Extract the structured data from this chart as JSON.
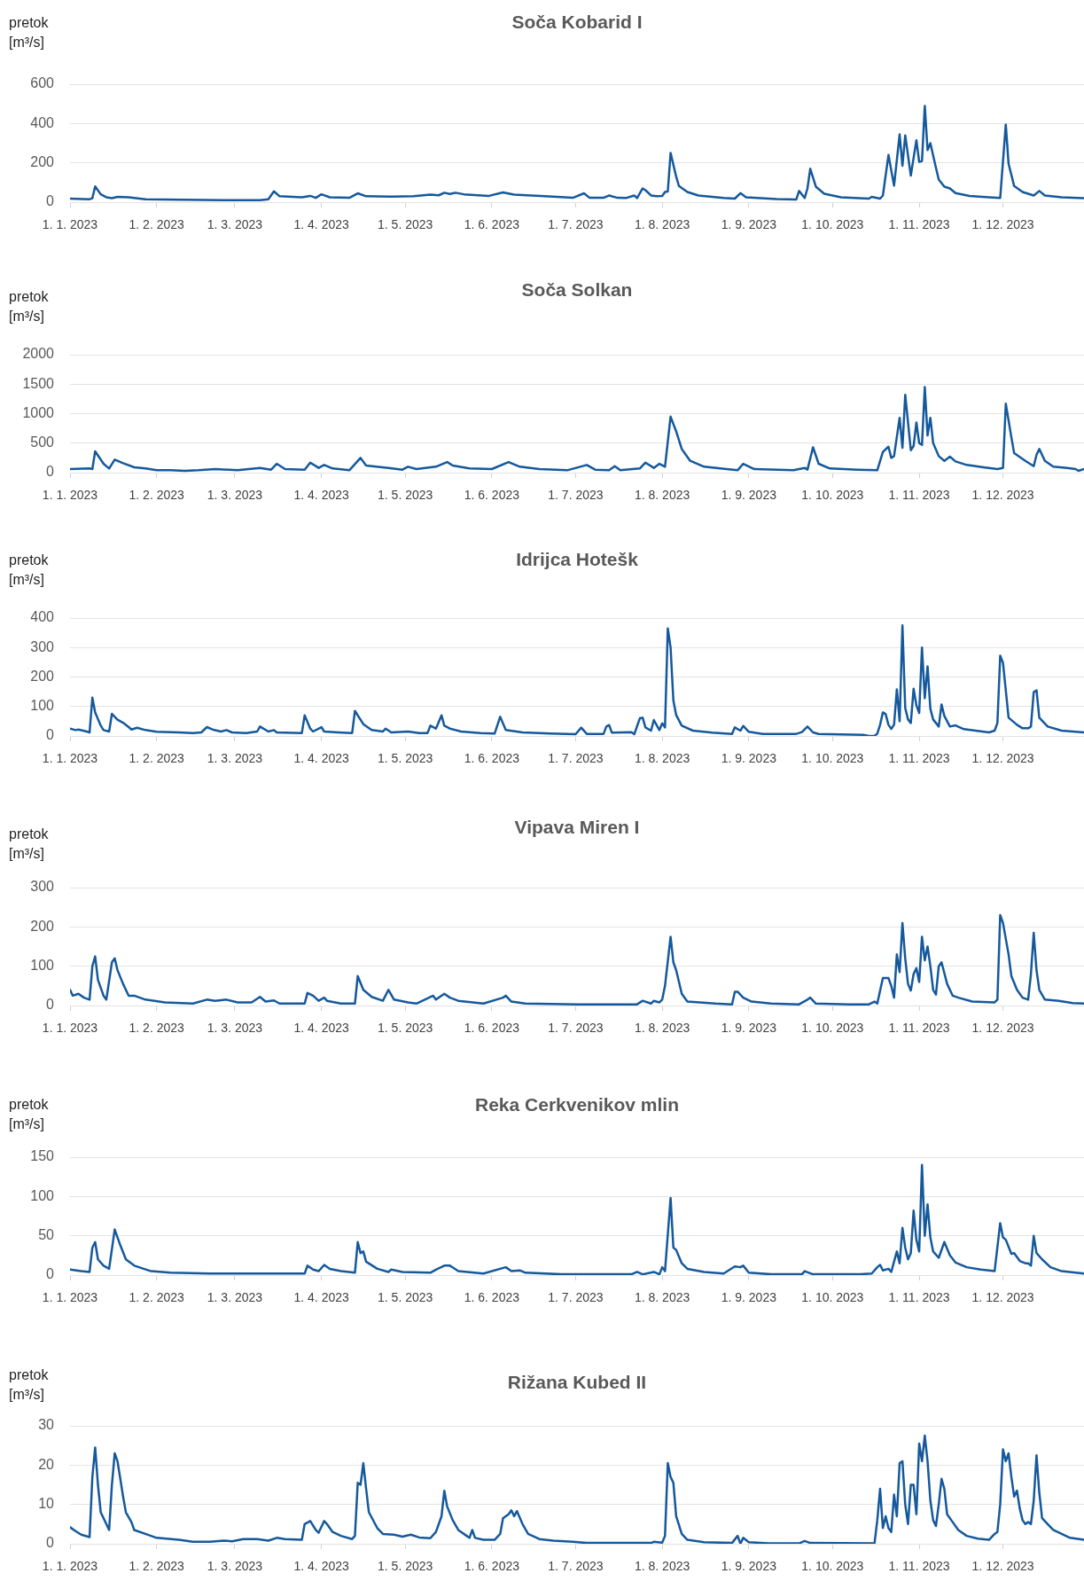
{
  "chart_data": [
    {
      "type": "line",
      "title": "Soča Kobarid I",
      "ylabel": "pretok [m³/s]",
      "color": "#15599c",
      "grid": "y",
      "xlim": [
        "2023-01-01",
        "2023-12-30"
      ],
      "xticks": [
        {
          "value": "2023-01-01",
          "label": "1. 1. 2023"
        },
        {
          "value": "2023-02-01",
          "label": "1. 2. 2023"
        },
        {
          "value": "2023-03-01",
          "label": "1. 3. 2023"
        },
        {
          "value": "2023-04-01",
          "label": "1. 4. 2023"
        },
        {
          "value": "2023-05-01",
          "label": "1. 5. 2023"
        },
        {
          "value": "2023-06-01",
          "label": "1. 6. 2023"
        },
        {
          "value": "2023-07-01",
          "label": "1. 7. 2023"
        },
        {
          "value": "2023-08-01",
          "label": "1. 8. 2023"
        },
        {
          "value": "2023-09-01",
          "label": "1. 9. 2023"
        },
        {
          "value": "2023-10-01",
          "label": "1. 10. 2023"
        },
        {
          "value": "2023-11-01",
          "label": "1. 11. 2023"
        },
        {
          "value": "2023-12-01",
          "label": "1. 12. 2023"
        }
      ],
      "ylim": [
        0,
        600
      ],
      "yticks": [
        0,
        200,
        400,
        600
      ],
      "x": [
        "2023-01-01",
        "2023-01-08",
        "2023-01-09",
        "2023-01-10",
        "2023-01-12",
        "2023-01-14",
        "2023-01-16",
        "2023-01-18",
        "2023-01-22",
        "2023-01-28",
        "2023-02-10",
        "2023-02-25",
        "2023-03-10",
        "2023-03-13",
        "2023-03-15",
        "2023-03-17",
        "2023-03-25",
        "2023-03-28",
        "2023-03-30",
        "2023-04-01",
        "2023-04-04",
        "2023-04-11",
        "2023-04-14",
        "2023-04-17",
        "2023-04-26",
        "2023-05-04",
        "2023-05-10",
        "2023-05-13",
        "2023-05-15",
        "2023-05-17",
        "2023-05-19",
        "2023-05-22",
        "2023-05-31",
        "2023-06-05",
        "2023-06-09",
        "2023-06-20",
        "2023-06-30",
        "2023-07-04",
        "2023-07-06",
        "2023-07-11",
        "2023-07-13",
        "2023-07-16",
        "2023-07-19",
        "2023-07-22",
        "2023-07-23",
        "2023-07-25",
        "2023-07-26",
        "2023-07-28",
        "2023-07-30",
        "2023-08-01",
        "2023-08-02",
        "2023-08-03",
        "2023-08-04",
        "2023-08-06",
        "2023-08-07",
        "2023-08-10",
        "2023-08-14",
        "2023-08-23",
        "2023-08-27",
        "2023-08-29",
        "2023-08-31",
        "2023-09-11",
        "2023-09-18",
        "2023-09-19",
        "2023-09-21",
        "2023-09-22",
        "2023-09-23",
        "2023-09-25",
        "2023-09-28",
        "2023-10-04",
        "2023-10-14",
        "2023-10-15",
        "2023-10-18",
        "2023-10-19",
        "2023-10-21",
        "2023-10-23",
        "2023-10-25",
        "2023-10-26",
        "2023-10-27",
        "2023-10-29",
        "2023-10-31",
        "2023-11-01",
        "2023-11-02",
        "2023-11-03",
        "2023-11-04",
        "2023-11-05",
        "2023-11-07",
        "2023-11-08",
        "2023-11-10",
        "2023-11-12",
        "2023-11-14",
        "2023-11-19",
        "2023-11-26",
        "2023-11-30",
        "2023-12-02",
        "2023-12-03",
        "2023-12-05",
        "2023-12-08",
        "2023-12-12",
        "2023-12-14",
        "2023-12-16",
        "2023-12-22",
        "2023-12-30"
      ],
      "values": [
        18,
        15,
        20,
        80,
        40,
        25,
        20,
        27,
        25,
        15,
        12,
        10,
        10,
        15,
        55,
        30,
        25,
        32,
        22,
        40,
        25,
        22,
        45,
        30,
        28,
        30,
        38,
        35,
        48,
        42,
        48,
        40,
        32,
        50,
        38,
        30,
        22,
        45,
        22,
        22,
        34,
        22,
        21,
        34,
        21,
        70,
        61,
        34,
        30,
        32,
        52,
        54,
        250,
        130,
        82,
        52,
        34,
        21,
        18,
        46,
        25,
        16,
        14,
        57,
        21,
        70,
        170,
        79,
        43,
        25,
        18,
        27,
        18,
        34,
        240,
        84,
        345,
        185,
        340,
        135,
        315,
        205,
        210,
        490,
        265,
        300,
        175,
        115,
        79,
        70,
        46,
        32,
        25,
        21,
        395,
        195,
        82,
        52,
        34,
        57,
        34,
        25,
        20
      ]
    },
    {
      "type": "line",
      "title": "Soča Solkan",
      "ylabel": "pretok [m³/s]",
      "color": "#15599c",
      "grid": "y",
      "xlim": [
        "2023-01-01",
        "2023-12-30"
      ],
      "xticks": [
        {
          "value": "2023-01-01",
          "label": "1. 1. 2023"
        },
        {
          "value": "2023-02-01",
          "label": "1. 2. 2023"
        },
        {
          "value": "2023-03-01",
          "label": "1. 3. 2023"
        },
        {
          "value": "2023-04-01",
          "label": "1. 4. 2023"
        },
        {
          "value": "2023-05-01",
          "label": "1. 5. 2023"
        },
        {
          "value": "2023-06-01",
          "label": "1. 6. 2023"
        },
        {
          "value": "2023-07-01",
          "label": "1. 7. 2023"
        },
        {
          "value": "2023-08-01",
          "label": "1. 8. 2023"
        },
        {
          "value": "2023-09-01",
          "label": "1. 9. 2023"
        },
        {
          "value": "2023-10-01",
          "label": "1. 10. 2023"
        },
        {
          "value": "2023-11-01",
          "label": "1. 11. 2023"
        },
        {
          "value": "2023-12-01",
          "label": "1. 12. 2023"
        }
      ],
      "ylim": [
        0,
        2000
      ],
      "yticks": [
        0,
        500,
        1000,
        1500,
        2000
      ],
      "x": [
        "2023-01-01",
        "2023-01-08",
        "2023-01-09",
        "2023-01-10",
        "2023-01-13",
        "2023-01-15",
        "2023-01-17",
        "2023-01-20",
        "2023-01-24",
        "2023-01-28",
        "2023-02-01",
        "2023-02-06",
        "2023-02-11",
        "2023-02-16",
        "2023-02-22",
        "2023-03-02",
        "2023-03-10",
        "2023-03-14",
        "2023-03-16",
        "2023-03-19",
        "2023-03-26",
        "2023-03-28",
        "2023-03-31",
        "2023-04-02",
        "2023-04-05",
        "2023-04-11",
        "2023-04-15",
        "2023-04-17",
        "2023-04-25",
        "2023-04-30",
        "2023-05-02",
        "2023-05-05",
        "2023-05-12",
        "2023-05-16",
        "2023-05-18",
        "2023-05-24",
        "2023-06-01",
        "2023-06-07",
        "2023-06-11",
        "2023-06-18",
        "2023-06-28",
        "2023-07-05",
        "2023-07-08",
        "2023-07-13",
        "2023-07-15",
        "2023-07-17",
        "2023-07-24",
        "2023-07-26",
        "2023-07-29",
        "2023-07-31",
        "2023-08-02",
        "2023-08-04",
        "2023-08-06",
        "2023-08-08",
        "2023-08-11",
        "2023-08-16",
        "2023-08-24",
        "2023-08-28",
        "2023-08-30",
        "2023-09-03",
        "2023-09-17",
        "2023-09-21",
        "2023-09-22",
        "2023-09-24",
        "2023-09-26",
        "2023-09-30",
        "2023-10-10",
        "2023-10-17",
        "2023-10-19",
        "2023-10-21",
        "2023-10-22",
        "2023-10-23",
        "2023-10-25",
        "2023-10-26",
        "2023-10-27",
        "2023-10-29",
        "2023-10-30",
        "2023-10-31",
        "2023-11-01",
        "2023-11-02",
        "2023-11-03",
        "2023-11-04",
        "2023-11-05",
        "2023-11-06",
        "2023-11-08",
        "2023-11-10",
        "2023-11-12",
        "2023-11-14",
        "2023-11-18",
        "2023-11-24",
        "2023-11-29",
        "2023-12-01",
        "2023-12-02",
        "2023-12-04",
        "2023-12-05",
        "2023-12-09",
        "2023-12-12",
        "2023-12-13",
        "2023-12-14",
        "2023-12-16",
        "2023-12-19",
        "2023-12-24",
        "2023-12-27",
        "2023-12-28",
        "2023-12-30"
      ],
      "values": [
        60,
        70,
        60,
        360,
        150,
        70,
        220,
        160,
        90,
        70,
        40,
        40,
        30,
        40,
        60,
        40,
        80,
        50,
        150,
        60,
        50,
        170,
        80,
        130,
        70,
        40,
        250,
        120,
        80,
        50,
        100,
        60,
        100,
        180,
        120,
        70,
        60,
        180,
        100,
        60,
        40,
        130,
        50,
        40,
        110,
        40,
        70,
        170,
        80,
        150,
        100,
        950,
        700,
        400,
        200,
        100,
        60,
        40,
        150,
        60,
        40,
        80,
        50,
        430,
        150,
        70,
        50,
        40,
        350,
        440,
        250,
        280,
        930,
        420,
        1320,
        380,
        450,
        850,
        500,
        470,
        1450,
        630,
        930,
        500,
        280,
        200,
        270,
        190,
        130,
        90,
        60,
        80,
        1170,
        600,
        330,
        200,
        110,
        300,
        400,
        200,
        100,
        80,
        60,
        30,
        60
      ]
    },
    {
      "type": "line",
      "title": "Idrijca Hotešk",
      "ylabel": "pretok [m³/s]",
      "color": "#15599c",
      "grid": "y",
      "xlim": [
        "2023-01-01",
        "2023-12-30"
      ],
      "xticks": [
        {
          "value": "2023-01-01",
          "label": "1. 1. 2023"
        },
        {
          "value": "2023-02-01",
          "label": "1. 2. 2023"
        },
        {
          "value": "2023-03-01",
          "label": "1. 3. 2023"
        },
        {
          "value": "2023-04-01",
          "label": "1. 4. 2023"
        },
        {
          "value": "2023-05-01",
          "label": "1. 5. 2023"
        },
        {
          "value": "2023-06-01",
          "label": "1. 6. 2023"
        },
        {
          "value": "2023-07-01",
          "label": "1. 7. 2023"
        },
        {
          "value": "2023-08-01",
          "label": "1. 8. 2023"
        },
        {
          "value": "2023-09-01",
          "label": "1. 9. 2023"
        },
        {
          "value": "2023-10-01",
          "label": "1. 10. 2023"
        },
        {
          "value": "2023-11-01",
          "label": "1. 11. 2023"
        },
        {
          "value": "2023-12-01",
          "label": "1. 12. 2023"
        }
      ],
      "ylim": [
        0,
        400
      ],
      "yticks": [
        0,
        100,
        200,
        300,
        400
      ],
      "x": [
        "2023-01-01",
        "2023-01-03",
        "2023-01-04",
        "2023-01-07",
        "2023-01-08",
        "2023-01-09",
        "2023-01-10",
        "2023-01-12",
        "2023-01-13",
        "2023-01-15",
        "2023-01-16",
        "2023-01-18",
        "2023-01-20",
        "2023-01-22",
        "2023-01-23",
        "2023-01-25",
        "2023-01-28",
        "2023-02-01",
        "2023-02-09",
        "2023-02-14",
        "2023-02-17",
        "2023-02-19",
        "2023-02-21",
        "2023-02-24",
        "2023-02-26",
        "2023-02-28",
        "2023-03-05",
        "2023-03-09",
        "2023-03-10",
        "2023-03-13",
        "2023-03-15",
        "2023-03-16",
        "2023-03-25",
        "2023-03-26",
        "2023-03-28",
        "2023-03-29",
        "2023-04-01",
        "2023-04-02",
        "2023-04-07",
        "2023-04-12",
        "2023-04-13",
        "2023-04-16",
        "2023-04-19",
        "2023-04-23",
        "2023-04-24",
        "2023-04-26",
        "2023-05-02",
        "2023-05-06",
        "2023-05-09",
        "2023-05-10",
        "2023-05-12",
        "2023-05-14",
        "2023-05-15",
        "2023-05-17",
        "2023-05-21",
        "2023-05-28",
        "2023-06-02",
        "2023-06-04",
        "2023-06-06",
        "2023-06-12",
        "2023-06-22",
        "2023-07-01",
        "2023-07-03",
        "2023-07-05",
        "2023-07-11",
        "2023-07-12",
        "2023-07-13",
        "2023-07-14",
        "2023-07-21",
        "2023-07-22",
        "2023-07-24",
        "2023-07-25",
        "2023-07-26",
        "2023-07-28",
        "2023-07-29",
        "2023-07-31",
        "2023-08-01",
        "2023-08-02",
        "2023-08-03",
        "2023-08-04",
        "2023-08-05",
        "2023-08-06",
        "2023-08-08",
        "2023-08-12",
        "2023-08-19",
        "2023-08-26",
        "2023-08-27",
        "2023-08-29",
        "2023-08-30",
        "2023-09-01",
        "2023-09-06",
        "2023-09-18",
        "2023-09-20",
        "2023-09-22",
        "2023-09-24",
        "2023-09-26",
        "2023-10-12",
        "2023-10-14",
        "2023-10-16",
        "2023-10-17",
        "2023-10-18",
        "2023-10-19",
        "2023-10-20",
        "2023-10-21",
        "2023-10-22",
        "2023-10-23",
        "2023-10-24",
        "2023-10-25",
        "2023-10-26",
        "2023-10-27",
        "2023-10-28",
        "2023-10-29",
        "2023-10-30",
        "2023-10-31",
        "2023-11-01",
        "2023-11-02",
        "2023-11-03",
        "2023-11-04",
        "2023-11-05",
        "2023-11-06",
        "2023-11-08",
        "2023-11-09",
        "2023-11-10",
        "2023-11-12",
        "2023-11-14",
        "2023-11-17",
        "2023-11-23",
        "2023-11-26",
        "2023-11-28",
        "2023-11-29",
        "2023-11-30",
        "2023-12-01",
        "2023-12-03",
        "2023-12-06",
        "2023-12-08",
        "2023-12-10",
        "2023-12-11",
        "2023-12-12",
        "2023-12-13",
        "2023-12-14",
        "2023-12-17",
        "2023-12-22",
        "2023-12-30"
      ],
      "values": [
        25,
        20,
        22,
        15,
        12,
        130,
        80,
        35,
        20,
        15,
        75,
        55,
        45,
        30,
        22,
        28,
        20,
        14,
        12,
        10,
        12,
        30,
        22,
        15,
        20,
        12,
        10,
        15,
        32,
        15,
        20,
        12,
        10,
        70,
        25,
        15,
        30,
        15,
        12,
        10,
        85,
        40,
        20,
        15,
        25,
        12,
        15,
        10,
        10,
        35,
        25,
        70,
        35,
        25,
        15,
        10,
        8,
        65,
        20,
        12,
        8,
        6,
        28,
        7,
        7,
        32,
        37,
        11,
        13,
        6,
        60,
        62,
        29,
        18,
        54,
        20,
        43,
        29,
        365,
        300,
        120,
        71,
        35,
        18,
        11,
        7,
        29,
        18,
        34,
        14,
        7,
        7,
        13,
        32,
        12,
        7,
        4,
        0,
        0,
        8,
        38,
        80,
        74,
        38,
        24,
        38,
        158,
        50,
        375,
        95,
        56,
        44,
        160,
        104,
        78,
        300,
        128,
        236,
        92,
        56,
        32,
        107,
        68,
        32,
        36,
        23,
        16,
        12,
        18,
        44,
        272,
        248,
        62,
        38,
        26,
        26,
        32,
        149,
        155,
        62,
        32,
        18,
        12
      ]
    },
    {
      "type": "line",
      "title": "Vipava Miren I",
      "ylabel": "pretok [m³/s]",
      "color": "#15599c",
      "grid": "y",
      "xlim": [
        "2023-01-01",
        "2023-12-30"
      ],
      "xticks": [
        {
          "value": "2023-01-01",
          "label": "1. 1. 2023"
        },
        {
          "value": "2023-02-01",
          "label": "1. 2. 2023"
        },
        {
          "value": "2023-03-01",
          "label": "1. 3. 2023"
        },
        {
          "value": "2023-04-01",
          "label": "1. 4. 2023"
        },
        {
          "value": "2023-05-01",
          "label": "1. 5. 2023"
        },
        {
          "value": "2023-06-01",
          "label": "1. 6. 2023"
        },
        {
          "value": "2023-07-01",
          "label": "1. 7. 2023"
        },
        {
          "value": "2023-08-01",
          "label": "1. 8. 2023"
        },
        {
          "value": "2023-09-01",
          "label": "1. 9. 2023"
        },
        {
          "value": "2023-10-01",
          "label": "1. 10. 2023"
        },
        {
          "value": "2023-11-01",
          "label": "1. 11. 2023"
        },
        {
          "value": "2023-12-01",
          "label": "1. 12. 2023"
        }
      ],
      "ylim": [
        0,
        300
      ],
      "yticks": [
        0,
        100,
        200,
        300
      ],
      "x": [
        "2023-01-01",
        "2023-01-02",
        "2023-01-04",
        "2023-01-06",
        "2023-01-08",
        "2023-01-09",
        "2023-01-10",
        "2023-01-11",
        "2023-01-13",
        "2023-01-14",
        "2023-01-16",
        "2023-01-17",
        "2023-01-18",
        "2023-01-20",
        "2023-01-22",
        "2023-01-24",
        "2023-01-28",
        "2023-02-04",
        "2023-02-14",
        "2023-02-19",
        "2023-02-22",
        "2023-02-26",
        "2023-03-02",
        "2023-03-07",
        "2023-03-10",
        "2023-03-12",
        "2023-03-15",
        "2023-03-17",
        "2023-03-26",
        "2023-03-27",
        "2023-03-29",
        "2023-03-31",
        "2023-04-02",
        "2023-04-03",
        "2023-04-08",
        "2023-04-13",
        "2023-04-14",
        "2023-04-16",
        "2023-04-19",
        "2023-04-23",
        "2023-04-25",
        "2023-04-27",
        "2023-05-02",
        "2023-05-05",
        "2023-05-11",
        "2023-05-12",
        "2023-05-15",
        "2023-05-17",
        "2023-05-20",
        "2023-05-29",
        "2023-06-05",
        "2023-06-06",
        "2023-06-08",
        "2023-06-13",
        "2023-07-02",
        "2023-07-23",
        "2023-07-25",
        "2023-07-28",
        "2023-07-29",
        "2023-07-31",
        "2023-08-01",
        "2023-08-02",
        "2023-08-04",
        "2023-08-05",
        "2023-08-06",
        "2023-08-08",
        "2023-08-10",
        "2023-08-20",
        "2023-08-26",
        "2023-08-27",
        "2023-08-28",
        "2023-08-30",
        "2023-09-02",
        "2023-09-09",
        "2023-09-19",
        "2023-09-22",
        "2023-09-23",
        "2023-09-25",
        "2023-10-07",
        "2023-10-14",
        "2023-10-16",
        "2023-10-17",
        "2023-10-19",
        "2023-10-21",
        "2023-10-22",
        "2023-10-23",
        "2023-10-24",
        "2023-10-25",
        "2023-10-26",
        "2023-10-27",
        "2023-10-28",
        "2023-10-29",
        "2023-10-30",
        "2023-10-31",
        "2023-11-01",
        "2023-11-02",
        "2023-11-03",
        "2023-11-04",
        "2023-11-05",
        "2023-11-06",
        "2023-11-07",
        "2023-11-08",
        "2023-11-09",
        "2023-11-11",
        "2023-11-13",
        "2023-11-15",
        "2023-11-20",
        "2023-11-28",
        "2023-11-29",
        "2023-11-30",
        "2023-12-01",
        "2023-12-03",
        "2023-12-04",
        "2023-12-06",
        "2023-12-08",
        "2023-12-10",
        "2023-12-11",
        "2023-12-12",
        "2023-12-13",
        "2023-12-14",
        "2023-12-16",
        "2023-12-21",
        "2023-12-26",
        "2023-12-30"
      ],
      "values": [
        40,
        25,
        30,
        20,
        15,
        100,
        125,
        65,
        25,
        15,
        110,
        120,
        90,
        55,
        25,
        25,
        15,
        8,
        5,
        15,
        12,
        15,
        8,
        8,
        22,
        10,
        13,
        5,
        5,
        32,
        25,
        12,
        20,
        12,
        5,
        5,
        75,
        40,
        22,
        12,
        40,
        15,
        8,
        5,
        25,
        15,
        30,
        20,
        12,
        5,
        20,
        25,
        10,
        5,
        3,
        3,
        12,
        5,
        12,
        8,
        15,
        50,
        175,
        110,
        90,
        30,
        10,
        5,
        3,
        35,
        35,
        20,
        10,
        5,
        3,
        15,
        20,
        5,
        3,
        3,
        10,
        5,
        70,
        70,
        50,
        20,
        130,
        85,
        210,
        120,
        55,
        38,
        80,
        95,
        60,
        175,
        115,
        150,
        100,
        40,
        28,
        100,
        110,
        55,
        25,
        20,
        10,
        8,
        15,
        230,
        210,
        130,
        75,
        40,
        20,
        15,
        80,
        185,
        90,
        40,
        15,
        12,
        6,
        5
      ]
    },
    {
      "type": "line",
      "title": "Reka Cerkvenikov mlin",
      "ylabel": "pretok [m³/s]",
      "color": "#15599c",
      "grid": "y",
      "xlim": [
        "2023-01-01",
        "2023-12-30"
      ],
      "xticks": [
        {
          "value": "2023-01-01",
          "label": "1. 1. 2023"
        },
        {
          "value": "2023-02-01",
          "label": "1. 2. 2023"
        },
        {
          "value": "2023-03-01",
          "label": "1. 3. 2023"
        },
        {
          "value": "2023-04-01",
          "label": "1. 4. 2023"
        },
        {
          "value": "2023-05-01",
          "label": "1. 5. 2023"
        },
        {
          "value": "2023-06-01",
          "label": "1. 6. 2023"
        },
        {
          "value": "2023-07-01",
          "label": "1. 7. 2023"
        },
        {
          "value": "2023-08-01",
          "label": "1. 8. 2023"
        },
        {
          "value": "2023-09-01",
          "label": "1. 9. 2023"
        },
        {
          "value": "2023-10-01",
          "label": "1. 10. 2023"
        },
        {
          "value": "2023-11-01",
          "label": "1. 11. 2023"
        },
        {
          "value": "2023-12-01",
          "label": "1. 12. 2023"
        }
      ],
      "ylim": [
        0,
        150
      ],
      "yticks": [
        0,
        50,
        100,
        150
      ],
      "x": [
        "2023-01-01",
        "2023-01-05",
        "2023-01-08",
        "2023-01-09",
        "2023-01-10",
        "2023-01-11",
        "2023-01-13",
        "2023-01-15",
        "2023-01-17",
        "2023-01-19",
        "2023-01-21",
        "2023-01-24",
        "2023-01-30",
        "2023-02-06",
        "2023-02-20",
        "2023-03-26",
        "2023-03-27",
        "2023-03-29",
        "2023-03-31",
        "2023-04-02",
        "2023-04-04",
        "2023-04-08",
        "2023-04-13",
        "2023-04-14",
        "2023-04-15",
        "2023-04-16",
        "2023-04-17",
        "2023-04-21",
        "2023-04-25",
        "2023-04-26",
        "2023-04-30",
        "2023-05-10",
        "2023-05-12",
        "2023-05-15",
        "2023-05-17",
        "2023-05-20",
        "2023-05-29",
        "2023-06-06",
        "2023-06-08",
        "2023-06-11",
        "2023-06-13",
        "2023-06-26",
        "2023-07-21",
        "2023-07-23",
        "2023-07-25",
        "2023-07-29",
        "2023-07-31",
        "2023-08-01",
        "2023-08-02",
        "2023-08-04",
        "2023-08-05",
        "2023-08-06",
        "2023-08-08",
        "2023-08-10",
        "2023-08-16",
        "2023-08-23",
        "2023-08-27",
        "2023-08-29",
        "2023-08-30",
        "2023-09-01",
        "2023-09-09",
        "2023-09-20",
        "2023-09-21",
        "2023-09-24",
        "2023-10-11",
        "2023-10-15",
        "2023-10-17",
        "2023-10-18",
        "2023-10-19",
        "2023-10-21",
        "2023-10-22",
        "2023-10-24",
        "2023-10-25",
        "2023-10-26",
        "2023-10-27",
        "2023-10-28",
        "2023-10-29",
        "2023-10-30",
        "2023-10-31",
        "2023-11-01",
        "2023-11-02",
        "2023-11-03",
        "2023-11-04",
        "2023-11-05",
        "2023-11-06",
        "2023-11-08",
        "2023-11-10",
        "2023-11-12",
        "2023-11-14",
        "2023-11-18",
        "2023-11-23",
        "2023-11-26",
        "2023-11-28",
        "2023-11-30",
        "2023-12-01",
        "2023-12-02",
        "2023-12-04",
        "2023-12-05",
        "2023-12-07",
        "2023-12-09",
        "2023-12-10",
        "2023-12-11",
        "2023-12-12",
        "2023-12-13",
        "2023-12-15",
        "2023-12-18",
        "2023-12-22",
        "2023-12-30"
      ],
      "values": [
        7,
        5,
        4,
        35,
        42,
        20,
        12,
        8,
        58,
        38,
        20,
        12,
        5,
        3,
        2,
        2,
        12,
        7,
        5,
        13,
        8,
        5,
        3,
        42,
        28,
        30,
        17,
        8,
        4,
        7,
        4,
        3,
        7,
        12,
        12,
        5,
        2,
        10,
        5,
        6,
        3,
        1,
        1,
        4,
        1,
        4,
        1,
        10,
        5,
        98,
        35,
        32,
        15,
        8,
        4,
        2,
        11,
        10,
        12,
        3,
        1,
        1,
        5,
        1,
        1,
        2,
        10,
        13,
        6,
        8,
        4,
        30,
        15,
        60,
        35,
        20,
        28,
        82,
        45,
        30,
        140,
        50,
        90,
        48,
        30,
        22,
        42,
        25,
        16,
        10,
        7,
        6,
        5,
        66,
        48,
        45,
        27,
        28,
        18,
        15,
        15,
        12,
        50,
        28,
        20,
        10,
        5,
        2
      ]
    },
    {
      "type": "line",
      "title": "Rižana Kubed II",
      "ylabel": "pretok [m³/s]",
      "color": "#15599c",
      "grid": "y",
      "xlim": [
        "2023-01-01",
        "2023-12-30"
      ],
      "xticks": [
        {
          "value": "2023-01-01",
          "label": "1. 1. 2023"
        },
        {
          "value": "2023-02-01",
          "label": "1. 2. 2023"
        },
        {
          "value": "2023-03-01",
          "label": "1. 3. 2023"
        },
        {
          "value": "2023-04-01",
          "label": "1. 4. 2023"
        },
        {
          "value": "2023-05-01",
          "label": "1. 5. 2023"
        },
        {
          "value": "2023-06-01",
          "label": "1. 6. 2023"
        },
        {
          "value": "2023-07-01",
          "label": "1. 7. 2023"
        },
        {
          "value": "2023-08-01",
          "label": "1. 8. 2023"
        },
        {
          "value": "2023-09-01",
          "label": "1. 9. 2023"
        },
        {
          "value": "2023-10-01",
          "label": "1. 10. 2023"
        },
        {
          "value": "2023-11-01",
          "label": "1. 11. 2023"
        },
        {
          "value": "2023-12-01",
          "label": "1. 12. 2023"
        }
      ],
      "ylim": [
        0,
        30
      ],
      "yticks": [
        0,
        10,
        20,
        30
      ],
      "x": [
        "2023-01-01",
        "2023-01-03",
        "2023-01-05",
        "2023-01-08",
        "2023-01-09",
        "2023-01-10",
        "2023-01-11",
        "2023-01-12",
        "2023-01-14",
        "2023-01-15",
        "2023-01-16",
        "2023-01-17",
        "2023-01-18",
        "2023-01-20",
        "2023-01-21",
        "2023-01-23",
        "2023-01-24",
        "2023-01-28",
        "2023-02-01",
        "2023-02-09",
        "2023-02-14",
        "2023-02-20",
        "2023-02-25",
        "2023-02-28",
        "2023-03-04",
        "2023-03-09",
        "2023-03-13",
        "2023-03-16",
        "2023-03-19",
        "2023-03-25",
        "2023-03-26",
        "2023-03-28",
        "2023-03-30",
        "2023-03-31",
        "2023-04-02",
        "2023-04-03",
        "2023-04-05",
        "2023-04-08",
        "2023-04-12",
        "2023-04-13",
        "2023-04-14",
        "2023-04-15",
        "2023-04-16",
        "2023-04-17",
        "2023-04-18",
        "2023-04-21",
        "2023-04-23",
        "2023-04-27",
        "2023-04-30",
        "2023-05-03",
        "2023-05-06",
        "2023-05-10",
        "2023-05-12",
        "2023-05-14",
        "2023-05-15",
        "2023-05-16",
        "2023-05-18",
        "2023-05-20",
        "2023-05-23",
        "2023-05-24",
        "2023-05-25",
        "2023-05-26",
        "2023-05-29",
        "2023-06-02",
        "2023-06-04",
        "2023-06-05",
        "2023-06-07",
        "2023-06-08",
        "2023-06-09",
        "2023-06-10",
        "2023-06-12",
        "2023-06-14",
        "2023-06-18",
        "2023-06-23",
        "2023-06-30",
        "2023-07-05",
        "2023-07-28",
        "2023-07-29",
        "2023-08-01",
        "2023-08-02",
        "2023-08-03",
        "2023-08-04",
        "2023-08-05",
        "2023-08-06",
        "2023-08-08",
        "2023-08-10",
        "2023-08-16",
        "2023-08-26",
        "2023-08-28",
        "2023-08-29",
        "2023-08-30",
        "2023-09-01",
        "2023-09-08",
        "2023-09-19",
        "2023-09-21",
        "2023-09-23",
        "2023-10-16",
        "2023-10-17",
        "2023-10-18",
        "2023-10-19",
        "2023-10-20",
        "2023-10-21",
        "2023-10-22",
        "2023-10-23",
        "2023-10-24",
        "2023-10-25",
        "2023-10-26",
        "2023-10-27",
        "2023-10-28",
        "2023-10-29",
        "2023-10-30",
        "2023-10-31",
        "2023-11-01",
        "2023-11-02",
        "2023-11-03",
        "2023-11-04",
        "2023-11-05",
        "2023-11-06",
        "2023-11-07",
        "2023-11-08",
        "2023-11-09",
        "2023-11-10",
        "2023-11-11",
        "2023-11-13",
        "2023-11-15",
        "2023-11-18",
        "2023-11-22",
        "2023-11-26",
        "2023-11-28",
        "2023-11-29",
        "2023-11-30",
        "2023-12-01",
        "2023-12-02",
        "2023-12-03",
        "2023-12-04",
        "2023-12-05",
        "2023-12-06",
        "2023-12-07",
        "2023-12-08",
        "2023-12-09",
        "2023-12-10",
        "2023-12-11",
        "2023-12-12",
        "2023-12-13",
        "2023-12-14",
        "2023-12-15",
        "2023-12-17",
        "2023-12-19",
        "2023-12-22",
        "2023-12-25",
        "2023-12-30"
      ],
      "values": [
        4.2,
        3.2,
        2.3,
        1.7,
        17,
        24.5,
        15,
        8,
        5,
        3.5,
        15,
        23,
        21,
        12,
        8,
        5.5,
        3.5,
        2.5,
        1.5,
        1,
        0.5,
        0.5,
        0.8,
        0.6,
        1.2,
        1.2,
        0.8,
        1.5,
        1.2,
        1,
        5,
        5.8,
        3.5,
        2.8,
        5.8,
        5,
        3,
        2,
        1.2,
        2,
        15.5,
        15,
        20.5,
        14,
        8,
        4,
        2.5,
        2.3,
        1.8,
        2.3,
        1.6,
        1.4,
        3,
        7,
        13.5,
        9.5,
        6,
        3.5,
        2,
        1.5,
        3.5,
        1.5,
        1,
        1,
        2.5,
        6.5,
        7.5,
        8.5,
        7,
        8.3,
        5,
        2.5,
        1.2,
        0.8,
        0.5,
        0.2,
        0.2,
        0.5,
        0.3,
        2,
        20.5,
        17,
        15.5,
        7,
        2.5,
        1,
        0.4,
        0.2,
        2,
        0,
        1.5,
        0.4,
        0.1,
        0.1,
        0.7,
        0.2,
        0.1,
        6,
        14,
        4,
        7,
        4,
        3,
        12.5,
        7,
        20.5,
        21,
        10,
        5,
        15,
        15,
        7.5,
        25.5,
        21,
        27.5,
        21,
        11,
        6,
        4.5,
        10,
        16.5,
        14,
        7.5,
        5.5,
        3.5,
        2,
        1.3,
        1,
        2.5,
        3,
        10,
        24,
        21,
        23,
        17,
        12,
        13.5,
        9,
        6,
        5,
        5.5,
        5,
        11,
        22.5,
        13,
        6.5,
        5,
        3.5,
        2.5,
        1.5,
        1
      ]
    }
  ]
}
